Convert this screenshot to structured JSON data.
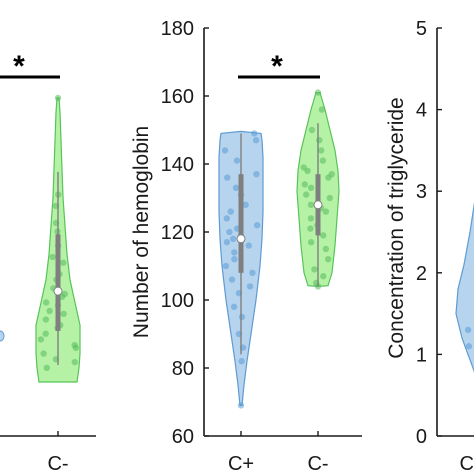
{
  "colors": {
    "c_plus_fill": "#b7d4ee",
    "c_plus_edge": "#5e9bd1",
    "c_plus_dot": "#5a9bd6",
    "c_minus_fill": "#b6f2a6",
    "c_minus_edge": "#57c35a",
    "c_minus_dot": "#55b95b",
    "box": "#7f7f7f",
    "median": "#ffffff"
  },
  "chart_data": [
    {
      "type": "violin",
      "title": "",
      "xlabel": "",
      "ylabel": "",
      "categories": [
        "C-"
      ],
      "y_ticks": [],
      "significance": "*",
      "series": [
        {
          "category": "C-",
          "median": 0.32,
          "q1": 0.18,
          "q3": 0.52,
          "whisker_low": 0.06,
          "whisker_high": 0.74,
          "max": 1.0,
          "min": 0.05,
          "points": [
            1.0,
            0.66,
            0.62,
            0.56,
            0.53,
            0.48,
            0.44,
            0.42,
            0.38,
            0.36,
            0.33,
            0.31,
            0.3,
            0.28,
            0.27,
            0.25,
            0.24,
            0.22,
            0.2,
            0.19,
            0.17,
            0.15,
            0.13,
            0.12,
            0.1,
            0.08,
            0.07,
            0.05
          ]
        }
      ]
    },
    {
      "type": "violin",
      "title": "",
      "xlabel": "",
      "ylabel": "Number of hemoglobin",
      "categories": [
        "C+",
        "C-"
      ],
      "ylim": [
        60,
        180
      ],
      "y_ticks": [
        "60",
        "80",
        "100",
        "120",
        "140",
        "160",
        "180"
      ],
      "significance": "*",
      "series": [
        {
          "category": "C+",
          "median": 118,
          "q1": 108,
          "q3": 137,
          "whisker_low": 84,
          "whisker_high": 149,
          "min": 69,
          "max": 149,
          "points": [
            149,
            147,
            144,
            141,
            137,
            136,
            133,
            131,
            128,
            126,
            124,
            122,
            121,
            120,
            119,
            118,
            117,
            116,
            114,
            112,
            110,
            108,
            106,
            104,
            102,
            98,
            95,
            90,
            86,
            82,
            69
          ]
        },
        {
          "category": "C-",
          "median": 128,
          "q1": 119,
          "q3": 137,
          "whisker_low": 104,
          "whisker_high": 152,
          "min": 104,
          "max": 161,
          "points": [
            161,
            156,
            150,
            147,
            144,
            141,
            139,
            138,
            137,
            136,
            134,
            133,
            131,
            130,
            128,
            127,
            126,
            124,
            122,
            121,
            119,
            117,
            115,
            112,
            109,
            107,
            105,
            104
          ]
        }
      ]
    },
    {
      "type": "violin",
      "title": "",
      "xlabel": "",
      "ylabel": "Concentration of triglyceride",
      "categories": [
        "C"
      ],
      "ylim": [
        0,
        5
      ],
      "y_ticks": [
        "0",
        "1",
        "2",
        "3",
        "4",
        "5"
      ],
      "significance": "",
      "series": [
        {
          "category": "C",
          "points": [
            3.2,
            2.2,
            1.9,
            1.7,
            1.6,
            1.5,
            1.45,
            1.4,
            1.35,
            1.3,
            1.2,
            1.1,
            0.9,
            0.7,
            0.65
          ]
        }
      ]
    }
  ]
}
